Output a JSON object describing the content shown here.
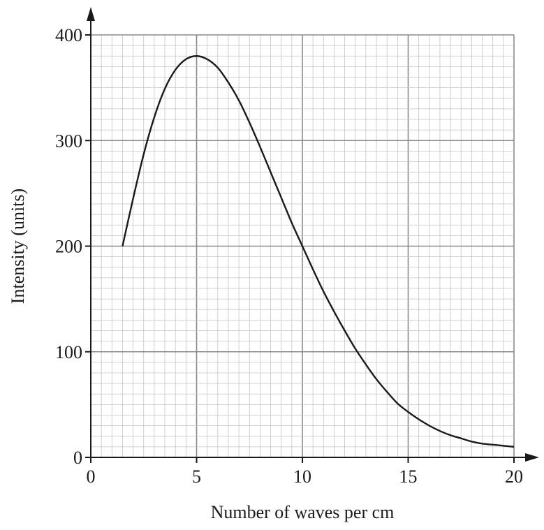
{
  "chart_data": {
    "type": "line",
    "title": "",
    "xlabel": "Number of waves per cm",
    "ylabel": "Intensity (units)",
    "xlim": [
      0,
      20
    ],
    "ylim": [
      0,
      400
    ],
    "x_ticks": [
      0,
      5,
      10,
      15,
      20
    ],
    "y_ticks": [
      0,
      100,
      200,
      300,
      400
    ],
    "x_tick_labels": [
      "0",
      "5",
      "10",
      "15",
      "20"
    ],
    "y_tick_labels": [
      "0",
      "100",
      "200",
      "300",
      "400"
    ],
    "grid": true,
    "legend": "none",
    "series": [
      {
        "x": [
          1.5,
          2,
          2.5,
          3,
          3.5,
          4,
          4.5,
          5,
          5.5,
          6,
          6.5,
          7,
          7.5,
          8,
          8.5,
          9,
          9.5,
          10,
          10.5,
          11,
          11.5,
          12,
          12.5,
          13,
          13.5,
          14,
          14.5,
          15,
          15.5,
          16,
          16.5,
          17,
          17.5,
          18,
          18.5,
          19,
          19.5,
          20
        ],
        "y": [
          200,
          245,
          287,
          322,
          349,
          367,
          377,
          380,
          377,
          369,
          355,
          338,
          317,
          294,
          270,
          246,
          222,
          200,
          178,
          157,
          138,
          120,
          103,
          88,
          74,
          62,
          51,
          43,
          36,
          30,
          25,
          21,
          18,
          15,
          13,
          12,
          11,
          10
        ]
      }
    ],
    "colors": {
      "line": "#1a1a1a",
      "axis": "#1a1a1a",
      "major_grid": "#8a8a8a",
      "minor_grid": "#c4c4c4"
    }
  }
}
